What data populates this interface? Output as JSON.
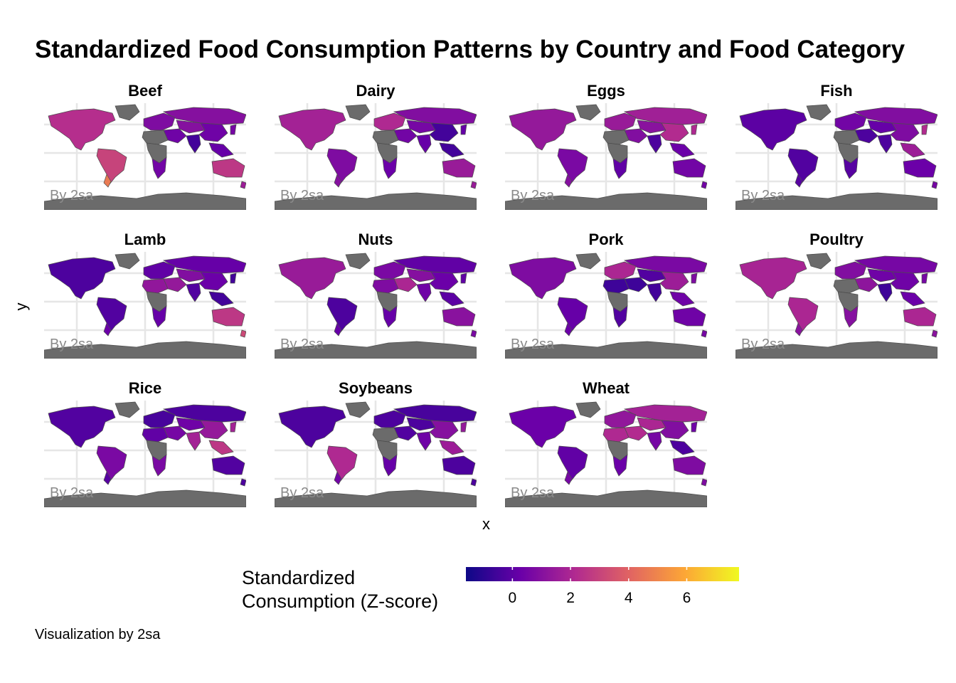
{
  "title": "Standardized Food Consumption Patterns by Country and Food Category",
  "axis": {
    "x": "x",
    "y": "y"
  },
  "caption": "Visualization by 2sa",
  "watermark": "By 2sa",
  "legend": {
    "title_line1": "Standardized",
    "title_line2": "Consumption (Z-score)",
    "ticks": [
      "0",
      "2",
      "4",
      "6"
    ],
    "tick_values": [
      0,
      2,
      4,
      6
    ],
    "range": [
      -1.6,
      7.8
    ],
    "colors": [
      "#0d0887",
      "#6a00a8",
      "#b12a90",
      "#e16462",
      "#fca636",
      "#f0f921"
    ]
  },
  "chart_data": {
    "type": "choropleth-facets",
    "panels": [
      {
        "name": "Beef",
        "values": {
          "northamerica": 2.3,
          "greenland": null,
          "southamerica": 3.0,
          "patagonia": 4.7,
          "europe": 0.8,
          "russia": 1.0,
          "centralasia": 1.0,
          "mideast": 0.4,
          "africa_n": null,
          "africa_c": null,
          "africa_s": 0.5,
          "india": -0.5,
          "china": 0.4,
          "seasia": 0.2,
          "japan": 0.6,
          "australia": 2.6,
          "nz": 1.6,
          "antarctica": null
        }
      },
      {
        "name": "Dairy",
        "values": {
          "northamerica": 1.8,
          "greenland": null,
          "southamerica": 0.8,
          "patagonia": 1.0,
          "europe": 2.1,
          "russia": 0.9,
          "centralasia": 0.6,
          "mideast": 0.5,
          "africa_n": null,
          "africa_c": null,
          "africa_s": 0.3,
          "india": 0.2,
          "china": -0.5,
          "seasia": -0.5,
          "japan": 0.2,
          "australia": 1.5,
          "nz": 1.5,
          "antarctica": null
        }
      },
      {
        "name": "Eggs",
        "values": {
          "northamerica": 1.4,
          "greenland": null,
          "southamerica": 0.7,
          "patagonia": 1.0,
          "europe": 1.5,
          "russia": 1.7,
          "centralasia": 1.1,
          "mideast": 0.9,
          "africa_n": null,
          "africa_c": null,
          "africa_s": 0.1,
          "india": -0.3,
          "china": 2.2,
          "seasia": 0.3,
          "japan": 2.1,
          "australia": 0.5,
          "nz": 0.5,
          "antarctica": null
        }
      },
      {
        "name": "Fish",
        "values": {
          "northamerica": 0.0,
          "greenland": null,
          "southamerica": -0.2,
          "patagonia": -0.1,
          "europe": 0.5,
          "russia": 0.9,
          "centralasia": 0.2,
          "mideast": -0.3,
          "africa_n": null,
          "africa_c": null,
          "africa_s": -0.1,
          "india": -0.3,
          "china": 0.8,
          "seasia": 1.6,
          "japan": 2.2,
          "australia": 0.3,
          "nz": 0.6,
          "antarctica": null
        }
      },
      {
        "name": "Lamb",
        "values": {
          "northamerica": -0.3,
          "greenland": null,
          "southamerica": -0.2,
          "patagonia": 0.3,
          "europe": 0.1,
          "russia": 0.2,
          "centralasia": 0.9,
          "mideast": 1.4,
          "africa_n": 1.3,
          "africa_c": null,
          "africa_s": 0.2,
          "india": -0.2,
          "china": 0.3,
          "seasia": -0.5,
          "japan": -0.5,
          "australia": 2.6,
          "nz": 3.2,
          "antarctica": null
        }
      },
      {
        "name": "Nuts",
        "values": {
          "northamerica": 1.5,
          "greenland": null,
          "southamerica": -0.3,
          "patagonia": 0.2,
          "europe": 0.7,
          "russia": 0.1,
          "centralasia": 1.0,
          "mideast": 2.0,
          "africa_n": 0.8,
          "africa_c": null,
          "africa_s": 0.2,
          "india": 0.4,
          "china": 0.3,
          "seasia": 0.0,
          "japan": 0.1,
          "australia": 1.1,
          "nz": 0.7,
          "antarctica": null
        }
      },
      {
        "name": "Pork",
        "values": {
          "northamerica": 0.8,
          "greenland": null,
          "southamerica": 0.2,
          "patagonia": 0.3,
          "europe": 2.0,
          "russia": 0.7,
          "centralasia": -0.2,
          "mideast": -0.6,
          "africa_n": -0.6,
          "africa_c": null,
          "africa_s": -0.2,
          "india": -0.5,
          "china": 1.6,
          "seasia": 0.4,
          "japan": 0.8,
          "australia": 0.4,
          "nz": 0.6,
          "antarctica": null
        }
      },
      {
        "name": "Poultry",
        "values": {
          "northamerica": 1.9,
          "greenland": null,
          "southamerica": 2.0,
          "patagonia": 1.1,
          "europe": 0.9,
          "russia": 0.6,
          "centralasia": 0.4,
          "mideast": 1.2,
          "africa_n": null,
          "africa_c": null,
          "africa_s": 1.0,
          "india": -0.6,
          "china": 0.4,
          "seasia": 0.3,
          "japan": 0.6,
          "australia": 2.0,
          "nz": 1.1,
          "antarctica": null
        }
      },
      {
        "name": "Rice",
        "values": {
          "northamerica": -0.2,
          "greenland": null,
          "southamerica": 0.7,
          "patagonia": -0.1,
          "europe": -0.4,
          "russia": -0.3,
          "centralasia": 0.4,
          "mideast": 0.6,
          "africa_n": 0.1,
          "africa_c": null,
          "africa_s": 0.7,
          "india": 1.8,
          "china": 1.4,
          "seasia": 2.6,
          "japan": 1.8,
          "australia": -0.2,
          "nz": -0.3,
          "antarctica": null
        }
      },
      {
        "name": "Soybeans",
        "values": {
          "northamerica": -0.3,
          "greenland": null,
          "southamerica": 2.1,
          "patagonia": 0.5,
          "europe": -0.3,
          "russia": -0.4,
          "centralasia": -0.3,
          "mideast": -0.2,
          "africa_n": null,
          "africa_c": null,
          "africa_s": 0.2,
          "india": 0.4,
          "china": 1.0,
          "seasia": 1.6,
          "japan": 1.4,
          "australia": -0.3,
          "nz": -0.3,
          "antarctica": null
        }
      },
      {
        "name": "Wheat",
        "values": {
          "northamerica": 0.3,
          "greenland": null,
          "southamerica": 0.1,
          "patagonia": 0.6,
          "europe": 1.3,
          "russia": 1.8,
          "centralasia": 2.0,
          "mideast": 2.2,
          "africa_n": 2.1,
          "africa_c": null,
          "africa_s": 0.3,
          "india": 0.6,
          "china": 0.9,
          "seasia": -0.3,
          "japan": 0.4,
          "australia": 0.8,
          "nz": 0.8,
          "antarctica": null
        }
      }
    ]
  }
}
